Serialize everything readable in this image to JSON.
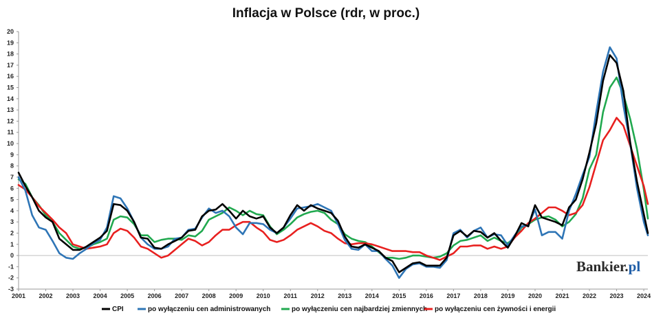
{
  "chart_data": {
    "type": "line",
    "title": "Inflacja w Polsce (rdr, w proc.)",
    "xlabel": "",
    "ylabel": "",
    "ylim": [
      -3,
      20
    ],
    "y_ticks": [
      -3,
      -2,
      -1,
      0,
      1,
      2,
      3,
      4,
      5,
      6,
      7,
      8,
      9,
      10,
      11,
      12,
      13,
      14,
      15,
      16,
      17,
      18,
      19,
      20
    ],
    "xlim": [
      2001,
      2024.15
    ],
    "x_tick_labels": [
      "2001",
      "2002",
      "2003",
      "2004",
      "2005",
      "2006",
      "2007",
      "2008",
      "2009",
      "2010",
      "2011",
      "2012",
      "2013",
      "2014",
      "2015",
      "2016",
      "2017",
      "2018",
      "2019",
      "2020",
      "2021",
      "2022",
      "2023",
      "2024"
    ],
    "x_tick_values": [
      2001,
      2002,
      2003,
      2004,
      2005,
      2006,
      2007,
      2008,
      2009,
      2010,
      2011,
      2012,
      2013,
      2014,
      2015,
      2016,
      2017,
      2018,
      2019,
      2020,
      2021,
      2022,
      2023,
      2024
    ],
    "grid": false,
    "legend_position": "bottom",
    "watermark": "Bankier.pl",
    "series": [
      {
        "name": "CPI",
        "color": "#000000",
        "x": [
          2001.0,
          2001.25,
          2001.5,
          2001.75,
          2002.0,
          2002.25,
          2002.5,
          2002.75,
          2003.0,
          2003.25,
          2003.5,
          2003.75,
          2004.0,
          2004.25,
          2004.5,
          2004.75,
          2005.0,
          2005.25,
          2005.5,
          2005.75,
          2006.0,
          2006.25,
          2006.5,
          2006.75,
          2007.0,
          2007.25,
          2007.5,
          2007.75,
          2008.0,
          2008.25,
          2008.5,
          2008.75,
          2009.0,
          2009.25,
          2009.5,
          2009.75,
          2010.0,
          2010.25,
          2010.5,
          2010.75,
          2011.0,
          2011.25,
          2011.5,
          2011.75,
          2012.0,
          2012.25,
          2012.5,
          2012.75,
          2013.0,
          2013.25,
          2013.5,
          2013.75,
          2014.0,
          2014.25,
          2014.5,
          2014.75,
          2015.0,
          2015.25,
          2015.5,
          2015.75,
          2016.0,
          2016.25,
          2016.5,
          2016.75,
          2017.0,
          2017.25,
          2017.5,
          2017.75,
          2018.0,
          2018.25,
          2018.5,
          2018.75,
          2019.0,
          2019.25,
          2019.5,
          2019.75,
          2020.0,
          2020.25,
          2020.5,
          2020.75,
          2021.0,
          2021.25,
          2021.5,
          2021.75,
          2022.0,
          2022.25,
          2022.5,
          2022.75,
          2023.0,
          2023.25,
          2023.5,
          2023.75,
          2024.0,
          2024.15
        ],
        "values": [
          7.4,
          6.2,
          5.2,
          4.0,
          3.4,
          3.0,
          1.5,
          1.0,
          0.5,
          0.5,
          0.8,
          1.2,
          1.6,
          2.2,
          4.6,
          4.5,
          4.0,
          3.0,
          1.6,
          1.5,
          0.7,
          0.6,
          1.0,
          1.3,
          1.6,
          2.2,
          2.3,
          3.5,
          4.0,
          4.1,
          4.6,
          4.0,
          3.3,
          4.0,
          3.5,
          3.3,
          3.5,
          2.5,
          2.0,
          2.5,
          3.6,
          4.5,
          4.0,
          4.5,
          4.2,
          4.0,
          3.8,
          3.1,
          1.7,
          0.8,
          0.7,
          1.0,
          0.7,
          0.4,
          -0.2,
          -0.5,
          -1.5,
          -1.1,
          -0.7,
          -0.6,
          -0.9,
          -0.9,
          -0.9,
          -0.2,
          1.8,
          2.2,
          1.7,
          2.2,
          2.1,
          1.6,
          2.0,
          1.3,
          0.7,
          1.7,
          2.9,
          2.6,
          4.5,
          3.4,
          3.2,
          3.0,
          2.7,
          4.3,
          5.0,
          6.8,
          9.2,
          11.8,
          15.6,
          17.9,
          17.2,
          14.7,
          10.1,
          6.6,
          3.7,
          2.0
        ]
      },
      {
        "name": "po wyłączeniu cen administrowanych",
        "color": "#2e75b6",
        "x": [
          2001.0,
          2001.25,
          2001.5,
          2001.75,
          2002.0,
          2002.25,
          2002.5,
          2002.75,
          2003.0,
          2003.25,
          2003.5,
          2003.75,
          2004.0,
          2004.25,
          2004.5,
          2004.75,
          2005.0,
          2005.25,
          2005.5,
          2005.75,
          2006.0,
          2006.25,
          2006.5,
          2006.75,
          2007.0,
          2007.25,
          2007.5,
          2007.75,
          2008.0,
          2008.25,
          2008.5,
          2008.75,
          2009.0,
          2009.25,
          2009.5,
          2009.75,
          2010.0,
          2010.25,
          2010.5,
          2010.75,
          2011.0,
          2011.25,
          2011.5,
          2011.75,
          2012.0,
          2012.25,
          2012.5,
          2012.75,
          2013.0,
          2013.25,
          2013.5,
          2013.75,
          2014.0,
          2014.25,
          2014.5,
          2014.75,
          2015.0,
          2015.25,
          2015.5,
          2015.75,
          2016.0,
          2016.25,
          2016.5,
          2016.75,
          2017.0,
          2017.25,
          2017.5,
          2017.75,
          2018.0,
          2018.25,
          2018.5,
          2018.75,
          2019.0,
          2019.25,
          2019.5,
          2019.75,
          2020.0,
          2020.25,
          2020.5,
          2020.75,
          2021.0,
          2021.25,
          2021.5,
          2021.75,
          2022.0,
          2022.25,
          2022.5,
          2022.75,
          2023.0,
          2023.25,
          2023.5,
          2023.75,
          2024.0,
          2024.15
        ],
        "values": [
          7.0,
          5.8,
          3.6,
          2.5,
          2.3,
          1.3,
          0.2,
          -0.2,
          -0.3,
          0.2,
          0.6,
          1.1,
          1.4,
          2.5,
          5.3,
          5.1,
          4.2,
          3.0,
          1.6,
          1.0,
          0.6,
          0.6,
          0.8,
          1.5,
          1.6,
          2.3,
          2.4,
          3.4,
          4.2,
          3.8,
          4.0,
          3.5,
          2.5,
          1.9,
          2.9,
          2.9,
          2.8,
          2.3,
          2.0,
          2.5,
          3.3,
          4.2,
          4.3,
          4.4,
          4.6,
          4.3,
          4.0,
          2.8,
          1.4,
          0.6,
          0.5,
          1.0,
          0.4,
          0.4,
          -0.3,
          -0.9,
          -2.0,
          -1.2,
          -0.8,
          -0.7,
          -1.0,
          -1.0,
          -1.1,
          -0.4,
          2.0,
          2.3,
          1.6,
          2.2,
          2.5,
          1.6,
          1.9,
          1.8,
          0.9,
          1.8,
          2.6,
          2.7,
          4.1,
          1.8,
          2.1,
          2.1,
          1.5,
          4.0,
          5.5,
          7.2,
          8.8,
          12.8,
          16.4,
          18.6,
          17.6,
          13.4,
          10.0,
          6.0,
          3.0,
          1.8
        ]
      },
      {
        "name": "po wyłączeniu cen najbardziej zmiennych",
        "color": "#21a94f",
        "x": [
          2001.0,
          2001.25,
          2001.5,
          2001.75,
          2002.0,
          2002.25,
          2002.5,
          2002.75,
          2003.0,
          2003.25,
          2003.5,
          2003.75,
          2004.0,
          2004.25,
          2004.5,
          2004.75,
          2005.0,
          2005.25,
          2005.5,
          2005.75,
          2006.0,
          2006.25,
          2006.5,
          2006.75,
          2007.0,
          2007.25,
          2007.5,
          2007.75,
          2008.0,
          2008.25,
          2008.5,
          2008.75,
          2009.0,
          2009.25,
          2009.5,
          2009.75,
          2010.0,
          2010.25,
          2010.5,
          2010.75,
          2011.0,
          2011.25,
          2011.5,
          2011.75,
          2012.0,
          2012.25,
          2012.5,
          2012.75,
          2013.0,
          2013.25,
          2013.5,
          2013.75,
          2014.0,
          2014.25,
          2014.5,
          2014.75,
          2015.0,
          2015.25,
          2015.5,
          2015.75,
          2016.0,
          2016.25,
          2016.5,
          2016.75,
          2017.0,
          2017.25,
          2017.5,
          2017.75,
          2018.0,
          2018.25,
          2018.5,
          2018.75,
          2019.0,
          2019.25,
          2019.5,
          2019.75,
          2020.0,
          2020.25,
          2020.5,
          2020.75,
          2021.0,
          2021.25,
          2021.5,
          2021.75,
          2022.0,
          2022.25,
          2022.5,
          2022.75,
          2023.0,
          2023.25,
          2023.5,
          2023.75,
          2024.0,
          2024.15
        ],
        "values": [
          6.8,
          6.4,
          5.2,
          4.5,
          3.6,
          3.0,
          2.0,
          1.4,
          0.8,
          0.6,
          0.7,
          1.0,
          1.2,
          1.5,
          3.2,
          3.5,
          3.4,
          2.8,
          1.8,
          1.8,
          1.2,
          1.4,
          1.5,
          1.5,
          1.4,
          1.8,
          1.7,
          2.2,
          3.2,
          3.5,
          3.8,
          4.3,
          4.0,
          3.6,
          4.0,
          3.7,
          3.6,
          2.6,
          1.9,
          2.3,
          2.8,
          3.4,
          3.7,
          3.9,
          4.0,
          3.8,
          3.2,
          2.8,
          1.9,
          1.5,
          1.3,
          1.2,
          0.8,
          0.3,
          -0.2,
          -0.2,
          -0.3,
          -0.2,
          0.0,
          0.0,
          -0.1,
          -0.2,
          -0.1,
          0.2,
          0.9,
          1.3,
          1.4,
          1.6,
          1.8,
          1.3,
          1.6,
          1.3,
          1.1,
          1.6,
          2.5,
          2.8,
          3.2,
          3.4,
          3.5,
          3.2,
          2.6,
          3.0,
          3.7,
          5.1,
          7.7,
          9.0,
          12.8,
          15.0,
          15.9,
          14.4,
          12.2,
          9.5,
          5.9,
          3.3
        ]
      },
      {
        "name": "po wyłączeniu cen żywności i energii",
        "color": "#e8201f",
        "x": [
          2001.0,
          2001.25,
          2001.5,
          2001.75,
          2002.0,
          2002.25,
          2002.5,
          2002.75,
          2003.0,
          2003.25,
          2003.5,
          2003.75,
          2004.0,
          2004.25,
          2004.5,
          2004.75,
          2005.0,
          2005.25,
          2005.5,
          2005.75,
          2006.0,
          2006.25,
          2006.5,
          2006.75,
          2007.0,
          2007.25,
          2007.5,
          2007.75,
          2008.0,
          2008.25,
          2008.5,
          2008.75,
          2009.0,
          2009.25,
          2009.5,
          2009.75,
          2010.0,
          2010.25,
          2010.5,
          2010.75,
          2011.0,
          2011.25,
          2011.5,
          2011.75,
          2012.0,
          2012.25,
          2012.5,
          2012.75,
          2013.0,
          2013.25,
          2013.5,
          2013.75,
          2014.0,
          2014.25,
          2014.5,
          2014.75,
          2015.0,
          2015.25,
          2015.5,
          2015.75,
          2016.0,
          2016.25,
          2016.5,
          2016.75,
          2017.0,
          2017.25,
          2017.5,
          2017.75,
          2018.0,
          2018.25,
          2018.5,
          2018.75,
          2019.0,
          2019.25,
          2019.5,
          2019.75,
          2020.0,
          2020.25,
          2020.5,
          2020.75,
          2021.0,
          2021.25,
          2021.5,
          2021.75,
          2022.0,
          2022.25,
          2022.5,
          2022.75,
          2023.0,
          2023.25,
          2023.5,
          2023.75,
          2024.0,
          2024.15
        ],
        "values": [
          6.3,
          5.9,
          5.2,
          4.4,
          3.8,
          3.2,
          2.5,
          2.0,
          1.0,
          0.8,
          0.6,
          0.7,
          0.8,
          1.0,
          2.0,
          2.4,
          2.2,
          1.6,
          0.8,
          0.6,
          0.2,
          -0.2,
          0.0,
          0.5,
          1.0,
          1.5,
          1.3,
          0.9,
          1.2,
          1.8,
          2.3,
          2.3,
          2.7,
          3.0,
          3.0,
          2.5,
          2.1,
          1.4,
          1.2,
          1.4,
          1.8,
          2.3,
          2.6,
          2.9,
          2.6,
          2.2,
          2.0,
          1.5,
          1.1,
          1.0,
          1.1,
          1.1,
          1.0,
          0.8,
          0.6,
          0.4,
          0.4,
          0.4,
          0.3,
          0.3,
          0.0,
          -0.2,
          -0.4,
          -0.1,
          0.2,
          0.8,
          0.8,
          0.9,
          0.9,
          0.6,
          0.8,
          0.6,
          0.8,
          1.6,
          2.2,
          2.9,
          3.3,
          3.8,
          4.3,
          4.3,
          4.0,
          3.6,
          3.8,
          4.5,
          6.1,
          8.2,
          10.3,
          11.2,
          12.3,
          11.6,
          9.8,
          8.0,
          6.2,
          4.6
        ]
      }
    ]
  }
}
